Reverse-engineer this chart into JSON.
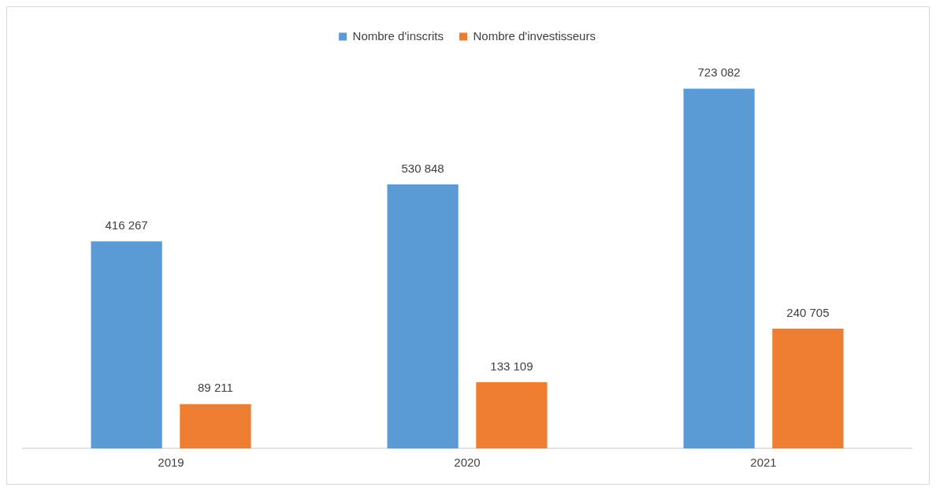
{
  "chart_data": {
    "type": "bar",
    "categories": [
      "2019",
      "2020",
      "2021"
    ],
    "series": [
      {
        "name": "Nombre d'inscrits",
        "color": "#5b9bd5",
        "values": [
          416267,
          530848,
          723082
        ],
        "value_labels": [
          "416 267",
          "530 848",
          "723 082"
        ]
      },
      {
        "name": "Nombre d'investisseurs",
        "color": "#ed7d31",
        "values": [
          89211,
          133109,
          240705
        ],
        "value_labels": [
          "89 211",
          "133 109",
          "240 705"
        ]
      }
    ],
    "legend": "top",
    "grid": false,
    "tick_labels": "x"
  }
}
